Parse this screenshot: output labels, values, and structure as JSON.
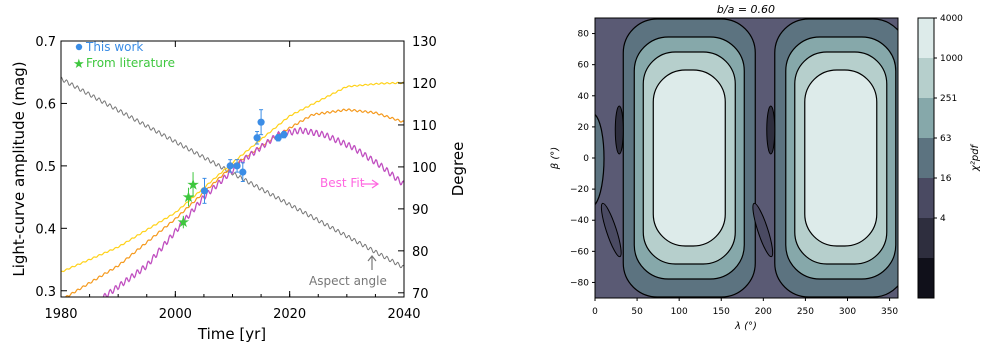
{
  "colors": {
    "this_work": "#3b8de6",
    "literature": "#3ec73e",
    "best_fit": "#c04fc0",
    "best_fit_label": "#ff66e0",
    "model_orange": "#f59a1e",
    "model_yellow": "#ffd21a",
    "aspect": "#777777"
  },
  "chart_data": [
    {
      "type": "scatter",
      "xlabel": "Time [yr]",
      "ylabel": "Light-curve amplitude (mag)",
      "y2label": "Degree",
      "xlim": [
        1980,
        2040
      ],
      "ylim": [
        0.29,
        0.7
      ],
      "y2lim": [
        69,
        130
      ],
      "xticks": [
        "1980",
        "2000",
        "2020",
        "2040"
      ],
      "yticks": [
        "0.3",
        "0.4",
        "0.5",
        "0.6",
        "0.7"
      ],
      "y2ticks": [
        "70",
        "80",
        "90",
        "100",
        "110",
        "120",
        "130"
      ],
      "legend_position": "top-left",
      "series": [
        {
          "name": "This work",
          "marker": "circle",
          "points": [
            {
              "x": 2005.1,
              "y": 0.46,
              "err": 0.02
            },
            {
              "x": 2009.6,
              "y": 0.5,
              "err": 0.01
            },
            {
              "x": 2010.8,
              "y": 0.5,
              "err": 0.01
            },
            {
              "x": 2011.8,
              "y": 0.49,
              "err": 0.015
            },
            {
              "x": 2014.3,
              "y": 0.545,
              "err": 0.01
            },
            {
              "x": 2015.0,
              "y": 0.57,
              "err": 0.02
            },
            {
              "x": 2018.0,
              "y": 0.545,
              "err": 0.005
            },
            {
              "x": 2019.0,
              "y": 0.55,
              "err": 0.005
            }
          ]
        },
        {
          "name": "From literature",
          "marker": "star",
          "points": [
            {
              "x": 2001.4,
              "y": 0.41,
              "err": 0.01
            },
            {
              "x": 2002.3,
              "y": 0.45,
              "err": 0.015
            },
            {
              "x": 2003.1,
              "y": 0.47,
              "err": 0.02
            }
          ]
        }
      ],
      "models": {
        "best_fit_label": "Best Fit",
        "aspect_label": "Aspect angle",
        "aspect_angle_deg": [
          [
            1980,
            121
          ],
          [
            2040,
            76
          ]
        ],
        "best_fit": [
          [
            1986,
            0.28
          ],
          [
            1995,
            0.34
          ],
          [
            2005,
            0.45
          ],
          [
            2012,
            0.51
          ],
          [
            2018,
            0.55
          ],
          [
            2022,
            0.557
          ],
          [
            2026,
            0.55
          ],
          [
            2031,
            0.53
          ],
          [
            2036,
            0.5
          ],
          [
            2040,
            0.47
          ]
        ],
        "orange": [
          [
            1980,
            0.285
          ],
          [
            1990,
            0.34
          ],
          [
            2000,
            0.415
          ],
          [
            2010,
            0.5
          ],
          [
            2018,
            0.55
          ],
          [
            2024,
            0.582
          ],
          [
            2030,
            0.59
          ],
          [
            2035,
            0.585
          ],
          [
            2040,
            0.57
          ]
        ],
        "yellow": [
          [
            1980,
            0.33
          ],
          [
            1990,
            0.37
          ],
          [
            2000,
            0.425
          ],
          [
            2010,
            0.505
          ],
          [
            2020,
            0.58
          ],
          [
            2030,
            0.627
          ],
          [
            2036,
            0.632
          ],
          [
            2040,
            0.633
          ]
        ]
      }
    },
    {
      "type": "heatmap",
      "title": "b/a = 0.60",
      "xlabel": "λ (°)",
      "ylabel": "β (°)",
      "xlim": [
        0,
        360
      ],
      "ylim": [
        -90,
        90
      ],
      "xticks": [
        "0",
        "50",
        "100",
        "150",
        "200",
        "250",
        "300",
        "350"
      ],
      "yticks": [
        "80",
        "60",
        "40",
        "20",
        "0",
        "−20",
        "−40",
        "−60",
        "−80"
      ],
      "colorbar": {
        "label": "χ²pdf",
        "ticks": [
          "4000",
          "1000",
          "251",
          "63",
          "16",
          "4"
        ],
        "levels": [
          "#10101a",
          "#2e2e3e",
          "#4a4a62",
          "#5c7380",
          "#86a8aa",
          "#b6cfcc",
          "#ddebea"
        ]
      },
      "lobes": [
        {
          "center_lambda": 112,
          "center_beta": 0
        },
        {
          "center_lambda": 292,
          "center_beta": 0
        }
      ]
    }
  ]
}
